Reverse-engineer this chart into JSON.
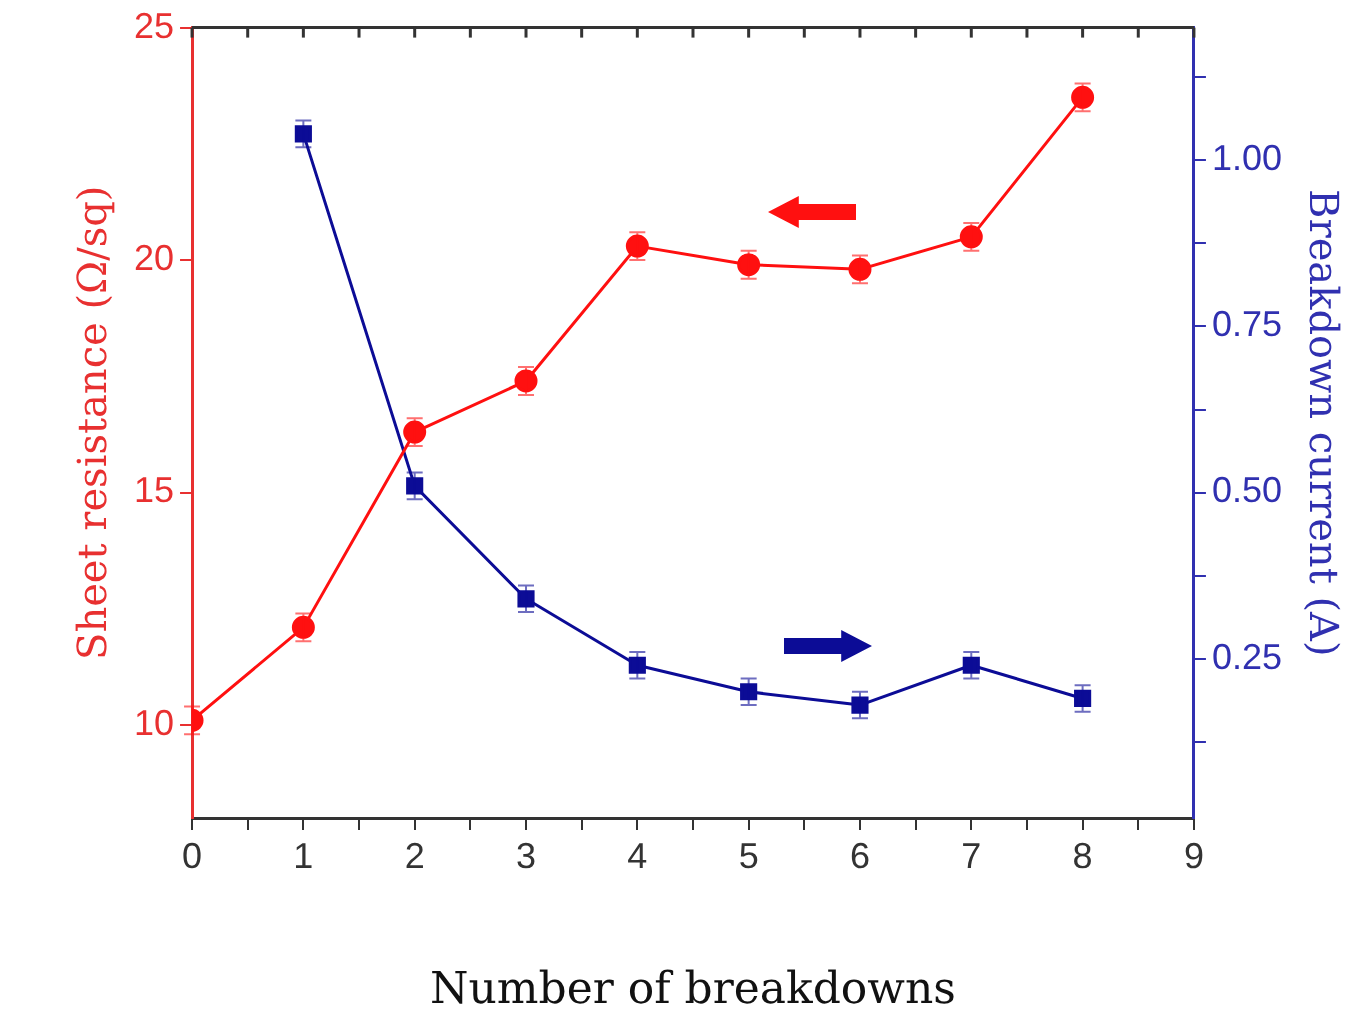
{
  "chart_data": {
    "type": "line",
    "xlabel": "Number of breakdowns",
    "ylabel": "Sheet resistance (Ω/sq)",
    "y2label": "Breakdown current (A)",
    "x": [
      0,
      1,
      2,
      3,
      4,
      5,
      6,
      7,
      8
    ],
    "xlim": [
      0,
      9
    ],
    "xticks": [
      0,
      {
        "value": 0.5,
        "label": null
      },
      1,
      {
        "value": 1.5,
        "label": null
      },
      2,
      {
        "value": 2.5,
        "label": null
      },
      3,
      {
        "value": 3.5,
        "label": null
      },
      4,
      {
        "value": 4.5,
        "label": null
      },
      5,
      {
        "value": 5.5,
        "label": null
      },
      6,
      {
        "value": 6.5,
        "label": null
      },
      7,
      {
        "value": 7.5,
        "label": null
      },
      8,
      {
        "value": 8.5,
        "label": null
      },
      9
    ],
    "ylim": [
      8,
      25
    ],
    "yticks": [
      10,
      15,
      20,
      25
    ],
    "y2lim": [
      0.01,
      1.2
    ],
    "y2ticks": [
      {
        "value": 0.125,
        "label": null
      },
      {
        "value": 0.25,
        "label": "0.25"
      },
      {
        "value": 0.375,
        "label": null
      },
      {
        "value": 0.5,
        "label": "0.50"
      },
      {
        "value": 0.625,
        "label": null
      },
      {
        "value": 0.75,
        "label": "0.75"
      },
      {
        "value": 0.875,
        "label": null
      },
      {
        "value": 1,
        "label": "1.00"
      },
      {
        "value": 1.125,
        "label": null
      }
    ],
    "grid": false,
    "legend": false,
    "line_style": "solid",
    "series": [
      {
        "color": "#ff1010",
        "marker": "circle",
        "values": [
          10.1,
          12.1,
          16.3,
          17.4,
          20.3,
          19.9,
          19.8,
          20.5,
          23.5
        ],
        "errors": [
          0.3,
          0.3,
          0.3,
          0.3,
          0.3,
          0.3,
          0.3,
          0.3,
          0.3
        ]
      },
      {
        "color": "#0c0c96",
        "marker": "square",
        "axis": "y2",
        "values": [
          null,
          1.04,
          0.51,
          0.34,
          0.24,
          0.2,
          0.18,
          0.24,
          0.19
        ],
        "errors": [
          null,
          0.02,
          0.02,
          0.02,
          0.02,
          0.02,
          0.02,
          0.02,
          0.02
        ]
      }
    ]
  }
}
